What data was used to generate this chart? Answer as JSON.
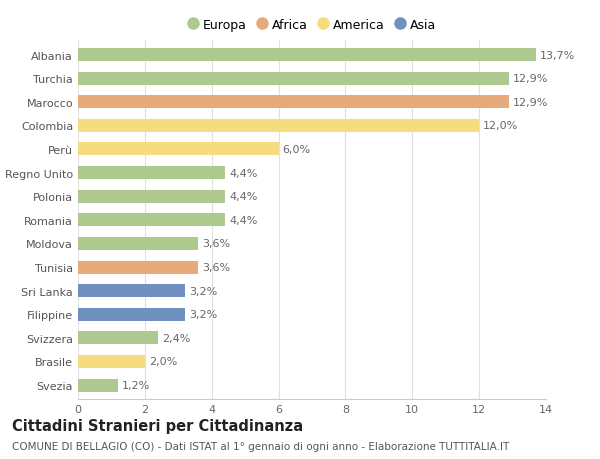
{
  "categories": [
    "Albania",
    "Turchia",
    "Marocco",
    "Colombia",
    "Perù",
    "Regno Unito",
    "Polonia",
    "Romania",
    "Moldova",
    "Tunisia",
    "Sri Lanka",
    "Filippine",
    "Svizzera",
    "Brasile",
    "Svezia"
  ],
  "values": [
    13.7,
    12.9,
    12.9,
    12.0,
    6.0,
    4.4,
    4.4,
    4.4,
    3.6,
    3.6,
    3.2,
    3.2,
    2.4,
    2.0,
    1.2
  ],
  "labels": [
    "13,7%",
    "12,9%",
    "12,9%",
    "12,0%",
    "6,0%",
    "4,4%",
    "4,4%",
    "4,4%",
    "3,6%",
    "3,6%",
    "3,2%",
    "3,2%",
    "2,4%",
    "2,0%",
    "1,2%"
  ],
  "colors": [
    "#adc990",
    "#adc990",
    "#e8aa7a",
    "#f5dc80",
    "#f5dc80",
    "#adc990",
    "#adc990",
    "#adc990",
    "#adc990",
    "#e8aa7a",
    "#7090c0",
    "#7090c0",
    "#adc990",
    "#f5dc80",
    "#adc990"
  ],
  "legend": [
    {
      "label": "Europa",
      "color": "#adc990"
    },
    {
      "label": "Africa",
      "color": "#e8aa7a"
    },
    {
      "label": "America",
      "color": "#f5dc80"
    },
    {
      "label": "Asia",
      "color": "#7090c0"
    }
  ],
  "title": "Cittadini Stranieri per Cittadinanza",
  "subtitle": "COMUNE DI BELLAGIO (CO) - Dati ISTAT al 1° gennaio di ogni anno - Elaborazione TUTTITALIA.IT",
  "xlim": [
    0,
    14
  ],
  "xticks": [
    0,
    2,
    4,
    6,
    8,
    10,
    12,
    14
  ],
  "background_color": "#ffffff",
  "grid_color": "#e0e0e0",
  "bar_height": 0.55,
  "label_fontsize": 8.0,
  "tick_fontsize": 8.0,
  "title_fontsize": 10.5,
  "subtitle_fontsize": 7.5
}
